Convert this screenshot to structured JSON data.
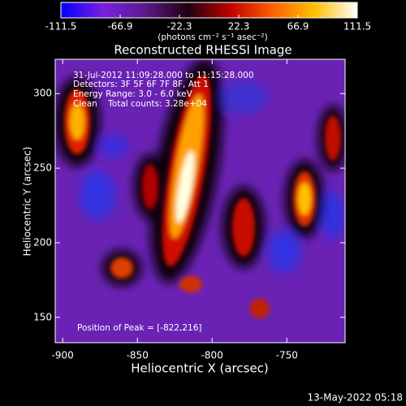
{
  "chart_data": {
    "type": "image",
    "title": "Reconstructed RHESSI Image",
    "xlabel": "Heliocentric X (arcsec)",
    "ylabel": "Heliocentric Y (arcsec)",
    "xlim": [
      -905,
      -711
    ],
    "ylim": [
      133,
      323
    ],
    "xticks": [
      -900,
      -850,
      -800,
      -750
    ],
    "yticks": [
      150,
      200,
      250,
      300
    ],
    "colorbar": {
      "label": "(photons cm⁻² s⁻¹ asec⁻²)",
      "lim": [
        -111.5,
        111.5
      ],
      "ticks": [
        -111.5,
        -66.9,
        -22.3,
        22.3,
        66.9,
        111.5
      ],
      "colors": [
        "#0000ff",
        "#7a20e0",
        "#5a1a8a",
        "#200010",
        "#c00000",
        "#ff6000",
        "#ffc000",
        "#ffffff"
      ]
    },
    "annotations": [
      "31-Jul-2012 11:09:28.000 to 11:15:28.000",
      "Detectors: 3F 5F 6F 7F 8F, Att 1",
      "Energy Range: 3.0 - 6.0 keV",
      "Clean    Total counts: 3.28e+04"
    ],
    "peak_label": "Position of Peak = [-822,216]",
    "footer": "13-May-2022 05:18"
  }
}
